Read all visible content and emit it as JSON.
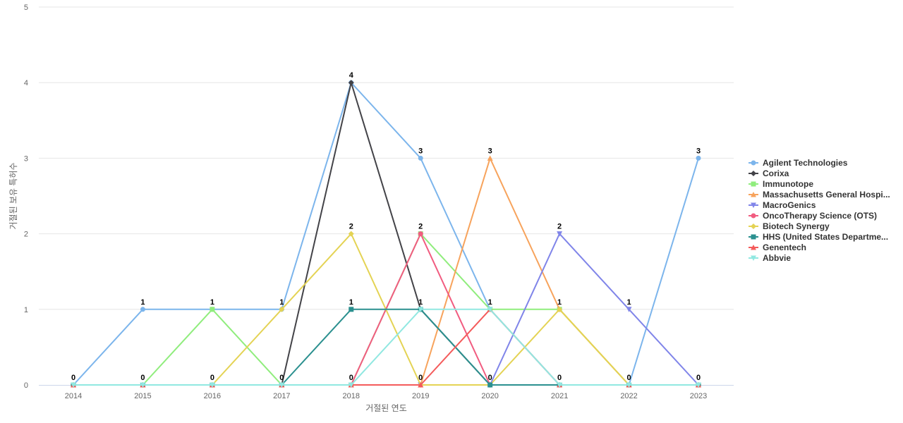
{
  "chart_data": {
    "type": "line",
    "xlabel": "거절된 연도",
    "ylabel": "거절된 보유 특허수",
    "x": [
      "2014",
      "2015",
      "2016",
      "2017",
      "2018",
      "2019",
      "2020",
      "2021",
      "2022",
      "2023"
    ],
    "ylim": [
      0,
      5
    ],
    "yticks": [
      0,
      1,
      2,
      3,
      4,
      5
    ],
    "grid": true,
    "legend_position": "right",
    "series": [
      {
        "name": "Agilent Technologies",
        "color": "#7cb5ec",
        "marker": "circle",
        "values": [
          0,
          1,
          1,
          1,
          4,
          3,
          1,
          0,
          0,
          3
        ]
      },
      {
        "name": "Corixa",
        "color": "#434348",
        "marker": "diamond",
        "values": [
          0,
          0,
          0,
          0,
          4,
          1,
          0,
          0,
          0,
          0
        ]
      },
      {
        "name": "Immunotope",
        "color": "#90ed7d",
        "marker": "square",
        "values": [
          0,
          0,
          1,
          0,
          0,
          2,
          1,
          1,
          0,
          0
        ]
      },
      {
        "name": "Massachusetts General Hospi...",
        "color": "#f7a35c",
        "marker": "triangle",
        "values": [
          0,
          0,
          0,
          0,
          0,
          0,
          3,
          1,
          0,
          0
        ]
      },
      {
        "name": "MacroGenics",
        "color": "#8085e9",
        "marker": "triangle-down",
        "values": [
          0,
          0,
          0,
          0,
          0,
          0,
          0,
          2,
          1,
          0
        ]
      },
      {
        "name": "OncoTherapy Science (OTS)",
        "color": "#f15c80",
        "marker": "circle",
        "values": [
          0,
          0,
          0,
          0,
          0,
          2,
          0,
          0,
          0,
          0
        ]
      },
      {
        "name": "Biotech Synergy",
        "color": "#e4d354",
        "marker": "diamond",
        "values": [
          0,
          0,
          0,
          1,
          2,
          0,
          0,
          1,
          0,
          0
        ]
      },
      {
        "name": "HHS (United States Departme...",
        "color": "#2b908f",
        "marker": "square",
        "values": [
          0,
          0,
          0,
          0,
          1,
          1,
          0,
          0,
          0,
          0
        ]
      },
      {
        "name": "Genentech",
        "color": "#f45b5b",
        "marker": "triangle",
        "values": [
          0,
          0,
          0,
          0,
          0,
          0,
          1,
          0,
          0,
          0
        ]
      },
      {
        "name": "Abbvie",
        "color": "#91e8e1",
        "marker": "triangle-down",
        "values": [
          0,
          0,
          0,
          0,
          0,
          1,
          1,
          0,
          0,
          0
        ]
      }
    ],
    "data_labels": [
      {
        "x": "2014",
        "y": 0,
        "text": "0"
      },
      {
        "x": "2015",
        "y": 1,
        "text": "1"
      },
      {
        "x": "2015",
        "y": 0,
        "text": "0"
      },
      {
        "x": "2016",
        "y": 1,
        "text": "1"
      },
      {
        "x": "2016",
        "y": 0,
        "text": "0"
      },
      {
        "x": "2017",
        "y": 1,
        "text": "1"
      },
      {
        "x": "2017",
        "y": 0,
        "text": "0"
      },
      {
        "x": "2018",
        "y": 4,
        "text": "4"
      },
      {
        "x": "2018",
        "y": 2,
        "text": "2"
      },
      {
        "x": "2018",
        "y": 1,
        "text": "1"
      },
      {
        "x": "2018",
        "y": 0,
        "text": "0"
      },
      {
        "x": "2019",
        "y": 3,
        "text": "3"
      },
      {
        "x": "2019",
        "y": 2,
        "text": "2"
      },
      {
        "x": "2019",
        "y": 1,
        "text": "1"
      },
      {
        "x": "2019",
        "y": 0,
        "text": "0"
      },
      {
        "x": "2020",
        "y": 3,
        "text": "3"
      },
      {
        "x": "2020",
        "y": 1,
        "text": "1"
      },
      {
        "x": "2020",
        "y": 0,
        "text": "0"
      },
      {
        "x": "2021",
        "y": 2,
        "text": "2"
      },
      {
        "x": "2021",
        "y": 1,
        "text": "1"
      },
      {
        "x": "2021",
        "y": 0,
        "text": "0"
      },
      {
        "x": "2022",
        "y": 1,
        "text": "1"
      },
      {
        "x": "2022",
        "y": 0,
        "text": "0"
      },
      {
        "x": "2023",
        "y": 3,
        "text": "3"
      },
      {
        "x": "2023",
        "y": 0,
        "text": "0"
      }
    ]
  }
}
